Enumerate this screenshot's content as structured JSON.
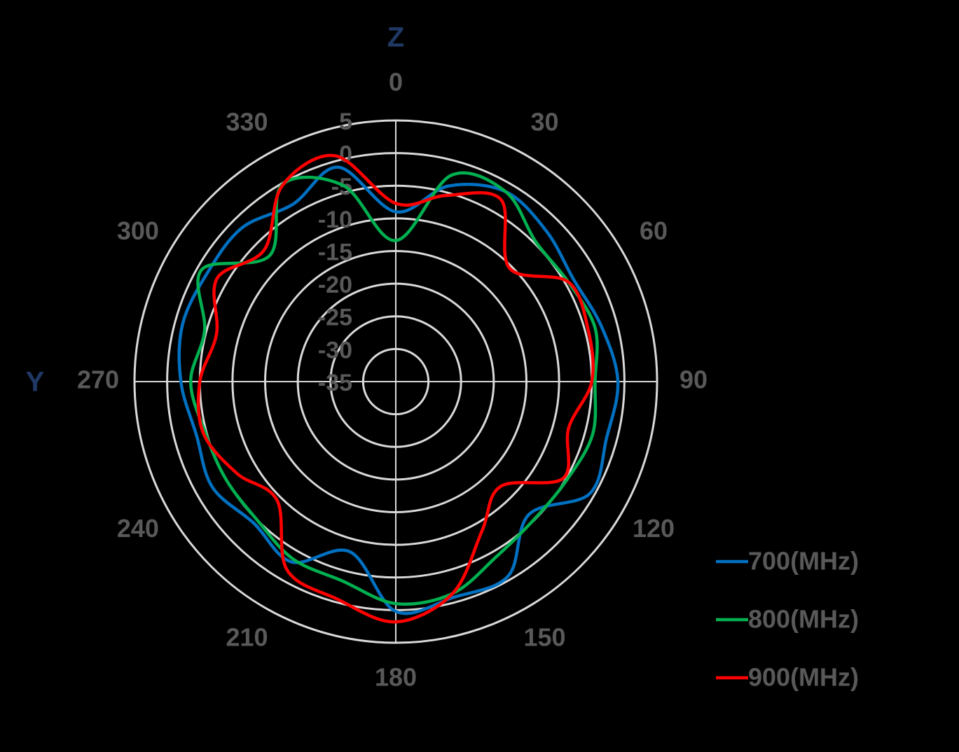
{
  "chart_data": {
    "type": "polar",
    "top_label": "Z",
    "left_label": "Y",
    "theta": [
      0,
      15,
      30,
      45,
      60,
      75,
      90,
      105,
      120,
      135,
      150,
      165,
      180,
      195,
      210,
      225,
      240,
      255,
      270,
      285,
      300,
      315,
      330,
      345
    ],
    "series": [
      {
        "name": "700(MHz)",
        "color": "#0070c0",
        "values": [
          -9,
          -4,
          -1.4,
          -2.4,
          -3.6,
          -2.4,
          -1,
          -1.6,
          -0.7,
          -6.2,
          -0.6,
          -0.8,
          0.2,
          -8,
          -3.1,
          -4.3,
          -2.6,
          -3.4,
          -2.1,
          -1.2,
          -1.7,
          -1.7,
          -3.6,
          -1
        ]
      },
      {
        "name": "800(MHz)",
        "color": "#00b050",
        "values": [
          -13.4,
          -2.3,
          -1.4,
          -4.7,
          -4.5,
          -3.4,
          -4.5,
          -3.8,
          -4.8,
          -5.1,
          -4.1,
          -1.4,
          -1,
          -3.4,
          -3.6,
          -5,
          -5,
          -4.8,
          -3.6,
          -4.7,
          -0.7,
          -7.7,
          -0.2,
          -3.9
        ]
      },
      {
        "name": "900(MHz)",
        "color": "#ff0000",
        "values": [
          -7.7,
          -5.5,
          -2.8,
          -10.4,
          -4.5,
          -4.5,
          -5,
          -7.6,
          -5.4,
          -12.3,
          -8.6,
          -1.4,
          1.8,
          -0.5,
          -1.7,
          -9.3,
          -6.9,
          -4.5,
          -5,
          -6.6,
          -3.4,
          -6.5,
          -0.3,
          0.8
        ]
      }
    ],
    "thetaticks": [
      0,
      30,
      60,
      90,
      120,
      150,
      180,
      210,
      240,
      270,
      300,
      330
    ],
    "rlim": [
      -35,
      5
    ],
    "rticks": [
      -35,
      -30,
      -25,
      -20,
      -15,
      -10,
      -5,
      0,
      5
    ],
    "grid": true,
    "legend": "right"
  }
}
